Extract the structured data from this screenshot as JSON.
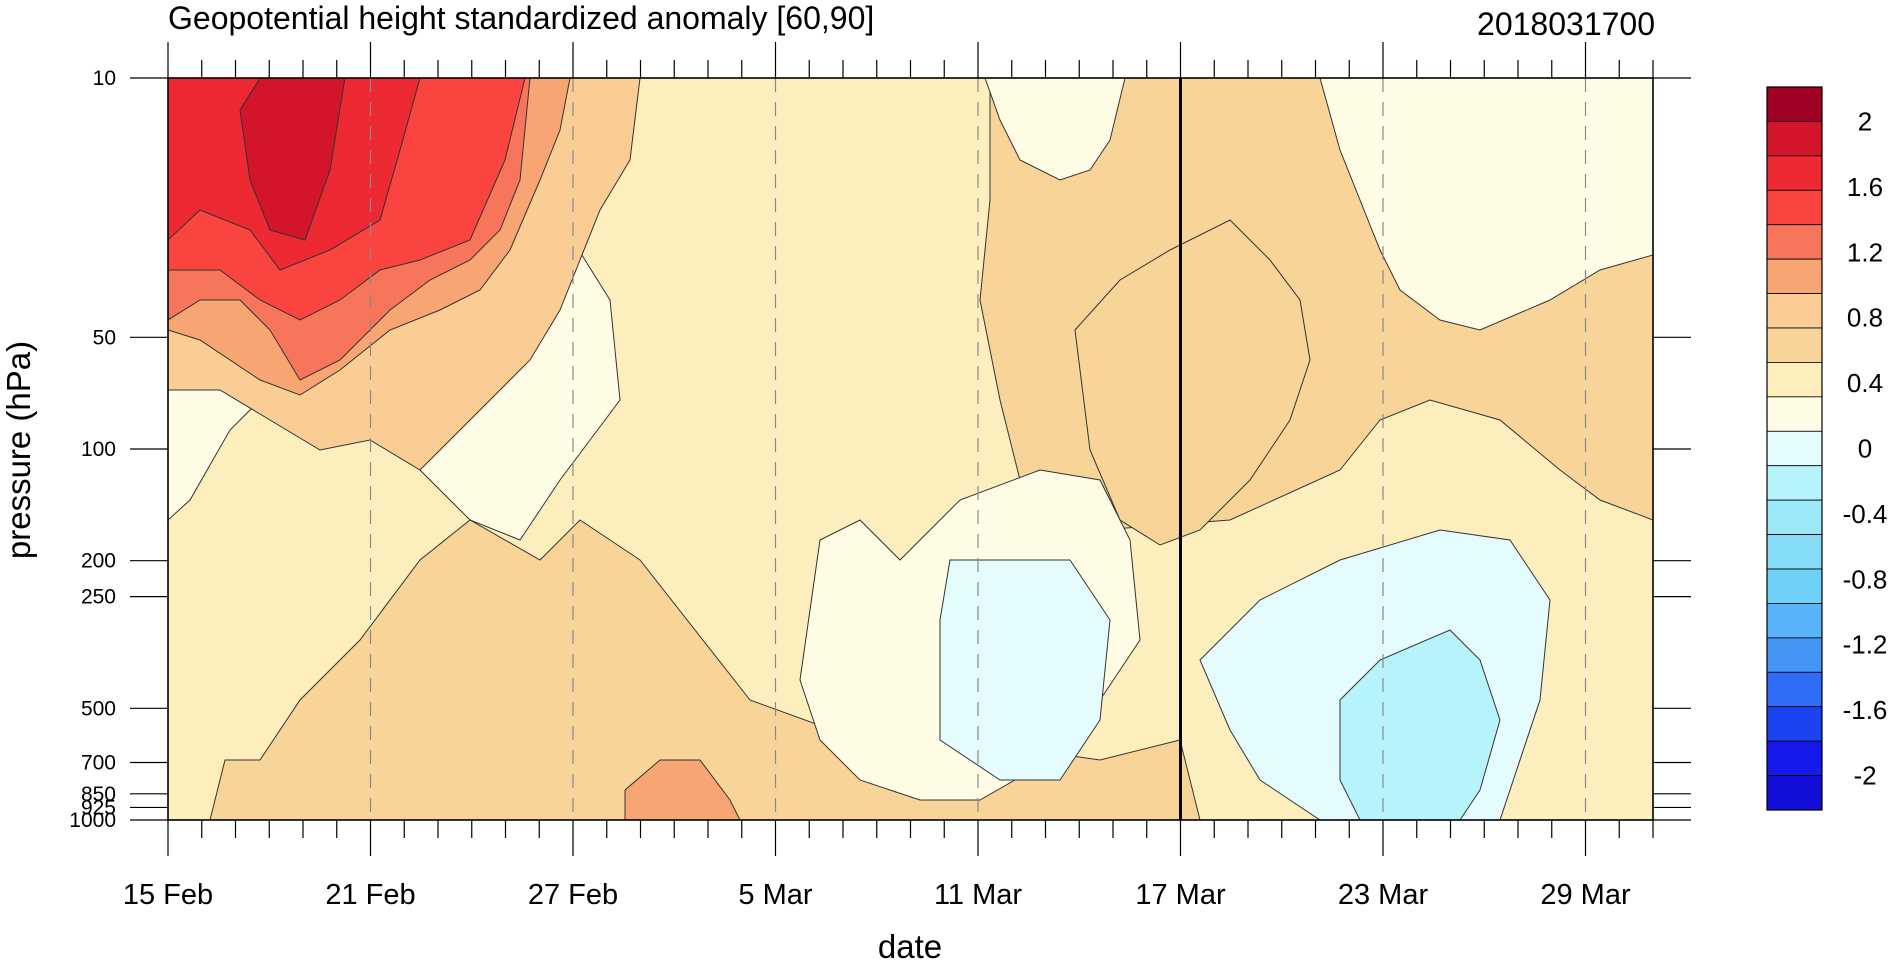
{
  "chart_data": {
    "type": "heatmap",
    "title": "Geopotential height standardized anomaly [60,90]",
    "subtitle_right": "2018031700",
    "xlabel": "date",
    "ylabel": "pressure (hPa)",
    "x_tick_labels": [
      "15 Feb",
      "21 Feb",
      "27 Feb",
      "5 Mar",
      "11 Mar",
      "17 Mar",
      "23 Mar",
      "29 Mar"
    ],
    "x_range": [
      "2018-02-15",
      "2018-03-31"
    ],
    "y_scale": "log",
    "y_reversed": true,
    "y_range": [
      1000,
      10
    ],
    "y_tick_labels": [
      "10",
      "50",
      "100",
      "200",
      "250",
      "500",
      "700",
      "850",
      "925",
      "1000"
    ],
    "levels": [
      -2,
      -1.8,
      -1.6,
      -1.4,
      -1.2,
      -1.0,
      -0.8,
      -0.6,
      -0.4,
      -0.2,
      0,
      0.2,
      0.4,
      0.6,
      0.8,
      1.0,
      1.2,
      1.4,
      1.6,
      1.8,
      2
    ],
    "colorbar_labels": [
      "2",
      "1.6",
      "1.2",
      "0.8",
      "0.4",
      "0",
      "-0.4",
      "-0.8",
      "-1.2",
      "-1.6",
      "-2"
    ],
    "colorbar_colors": [
      "#a10025",
      "#d2152a",
      "#ed2a33",
      "#fa443f",
      "#f7765b",
      "#f7a572",
      "#f9cd93",
      "#f9d498",
      "#fdeebd",
      "#fffce6",
      "#e4fcfd",
      "#b6f3fb",
      "#9be8f9",
      "#84dcf7",
      "#6fd0f8",
      "#5ab3f9",
      "#4595f7",
      "#2f6df7",
      "#1c43f2",
      "#1619eb",
      "#130ed8"
    ],
    "marker_date": "2018-03-17",
    "grid": "dashed vertical lines every 6 days",
    "date_tick_step_days": 6,
    "approximate_fields": [
      {
        "level_range": [
          1.4,
          1.8
        ],
        "x_dates": [
          "2018-02-19",
          "2018-02-22"
        ],
        "y_hPa": [
          10,
          30
        ],
        "note": "upper-level positive maximum"
      },
      {
        "level_range": [
          1.2,
          1.4
        ],
        "x_dates": [
          "2018-02-15",
          "2018-02-24"
        ],
        "y_hPa": [
          10,
          30
        ]
      },
      {
        "level_range": [
          0.4,
          0.6
        ],
        "x_dates": [
          "2018-03-16",
          "2018-03-22"
        ],
        "y_hPa": [
          25,
          170
        ]
      },
      {
        "level_range": [
          -0.2,
          0
        ],
        "x_dates": [
          "2018-03-11",
          "2018-03-15"
        ],
        "y_hPa": [
          220,
          720
        ]
      },
      {
        "level_range": [
          -0.4,
          -0.2
        ],
        "x_dates": [
          "2018-03-23",
          "2018-03-28"
        ],
        "y_hPa": [
          330,
          1000
        ]
      }
    ]
  }
}
